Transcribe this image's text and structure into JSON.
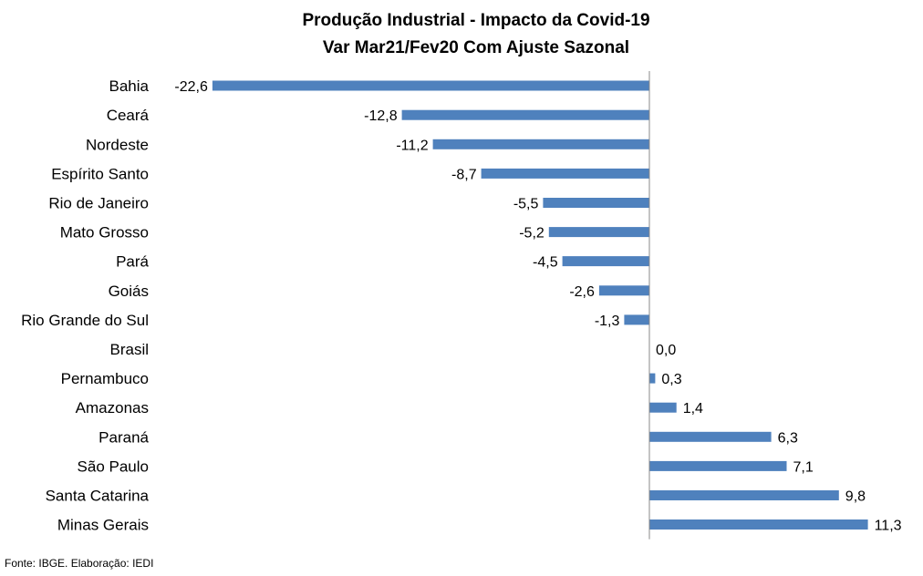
{
  "chart_data": {
    "type": "bar",
    "orientation": "horizontal",
    "title": "Produção Industrial - Impacto da Covid-19",
    "subtitle": "Var Mar21/Fev20 Com Ajuste Sazonal",
    "categories": [
      "Bahia",
      "Ceará",
      "Nordeste",
      "Espírito Santo",
      "Rio de Janeiro",
      "Mato Grosso",
      "Pará",
      "Goiás",
      "Rio Grande do Sul",
      "Brasil",
      "Pernambuco",
      "Amazonas",
      "Paraná",
      "São Paulo",
      "Santa Catarina",
      "Minas Gerais"
    ],
    "values": [
      -22.6,
      -12.8,
      -11.2,
      -8.7,
      -5.5,
      -5.2,
      -4.5,
      -2.6,
      -1.3,
      0.0,
      0.3,
      1.4,
      6.3,
      7.1,
      9.8,
      11.3
    ],
    "data_labels": [
      "-22,6",
      "-12,8",
      "-11,2",
      "-8,7",
      "-5,5",
      "-5,2",
      "-4,5",
      "-2,6",
      "-1,3",
      "0,0",
      "0,3",
      "1,4",
      "6,3",
      "7,1",
      "9,8",
      "11,3"
    ],
    "xlim": [
      -22.6,
      11.3
    ],
    "bar_color": "#4F81BD",
    "grid": false,
    "legend": "none"
  },
  "source": "Fonte: IBGE. Elaboração: IEDI"
}
